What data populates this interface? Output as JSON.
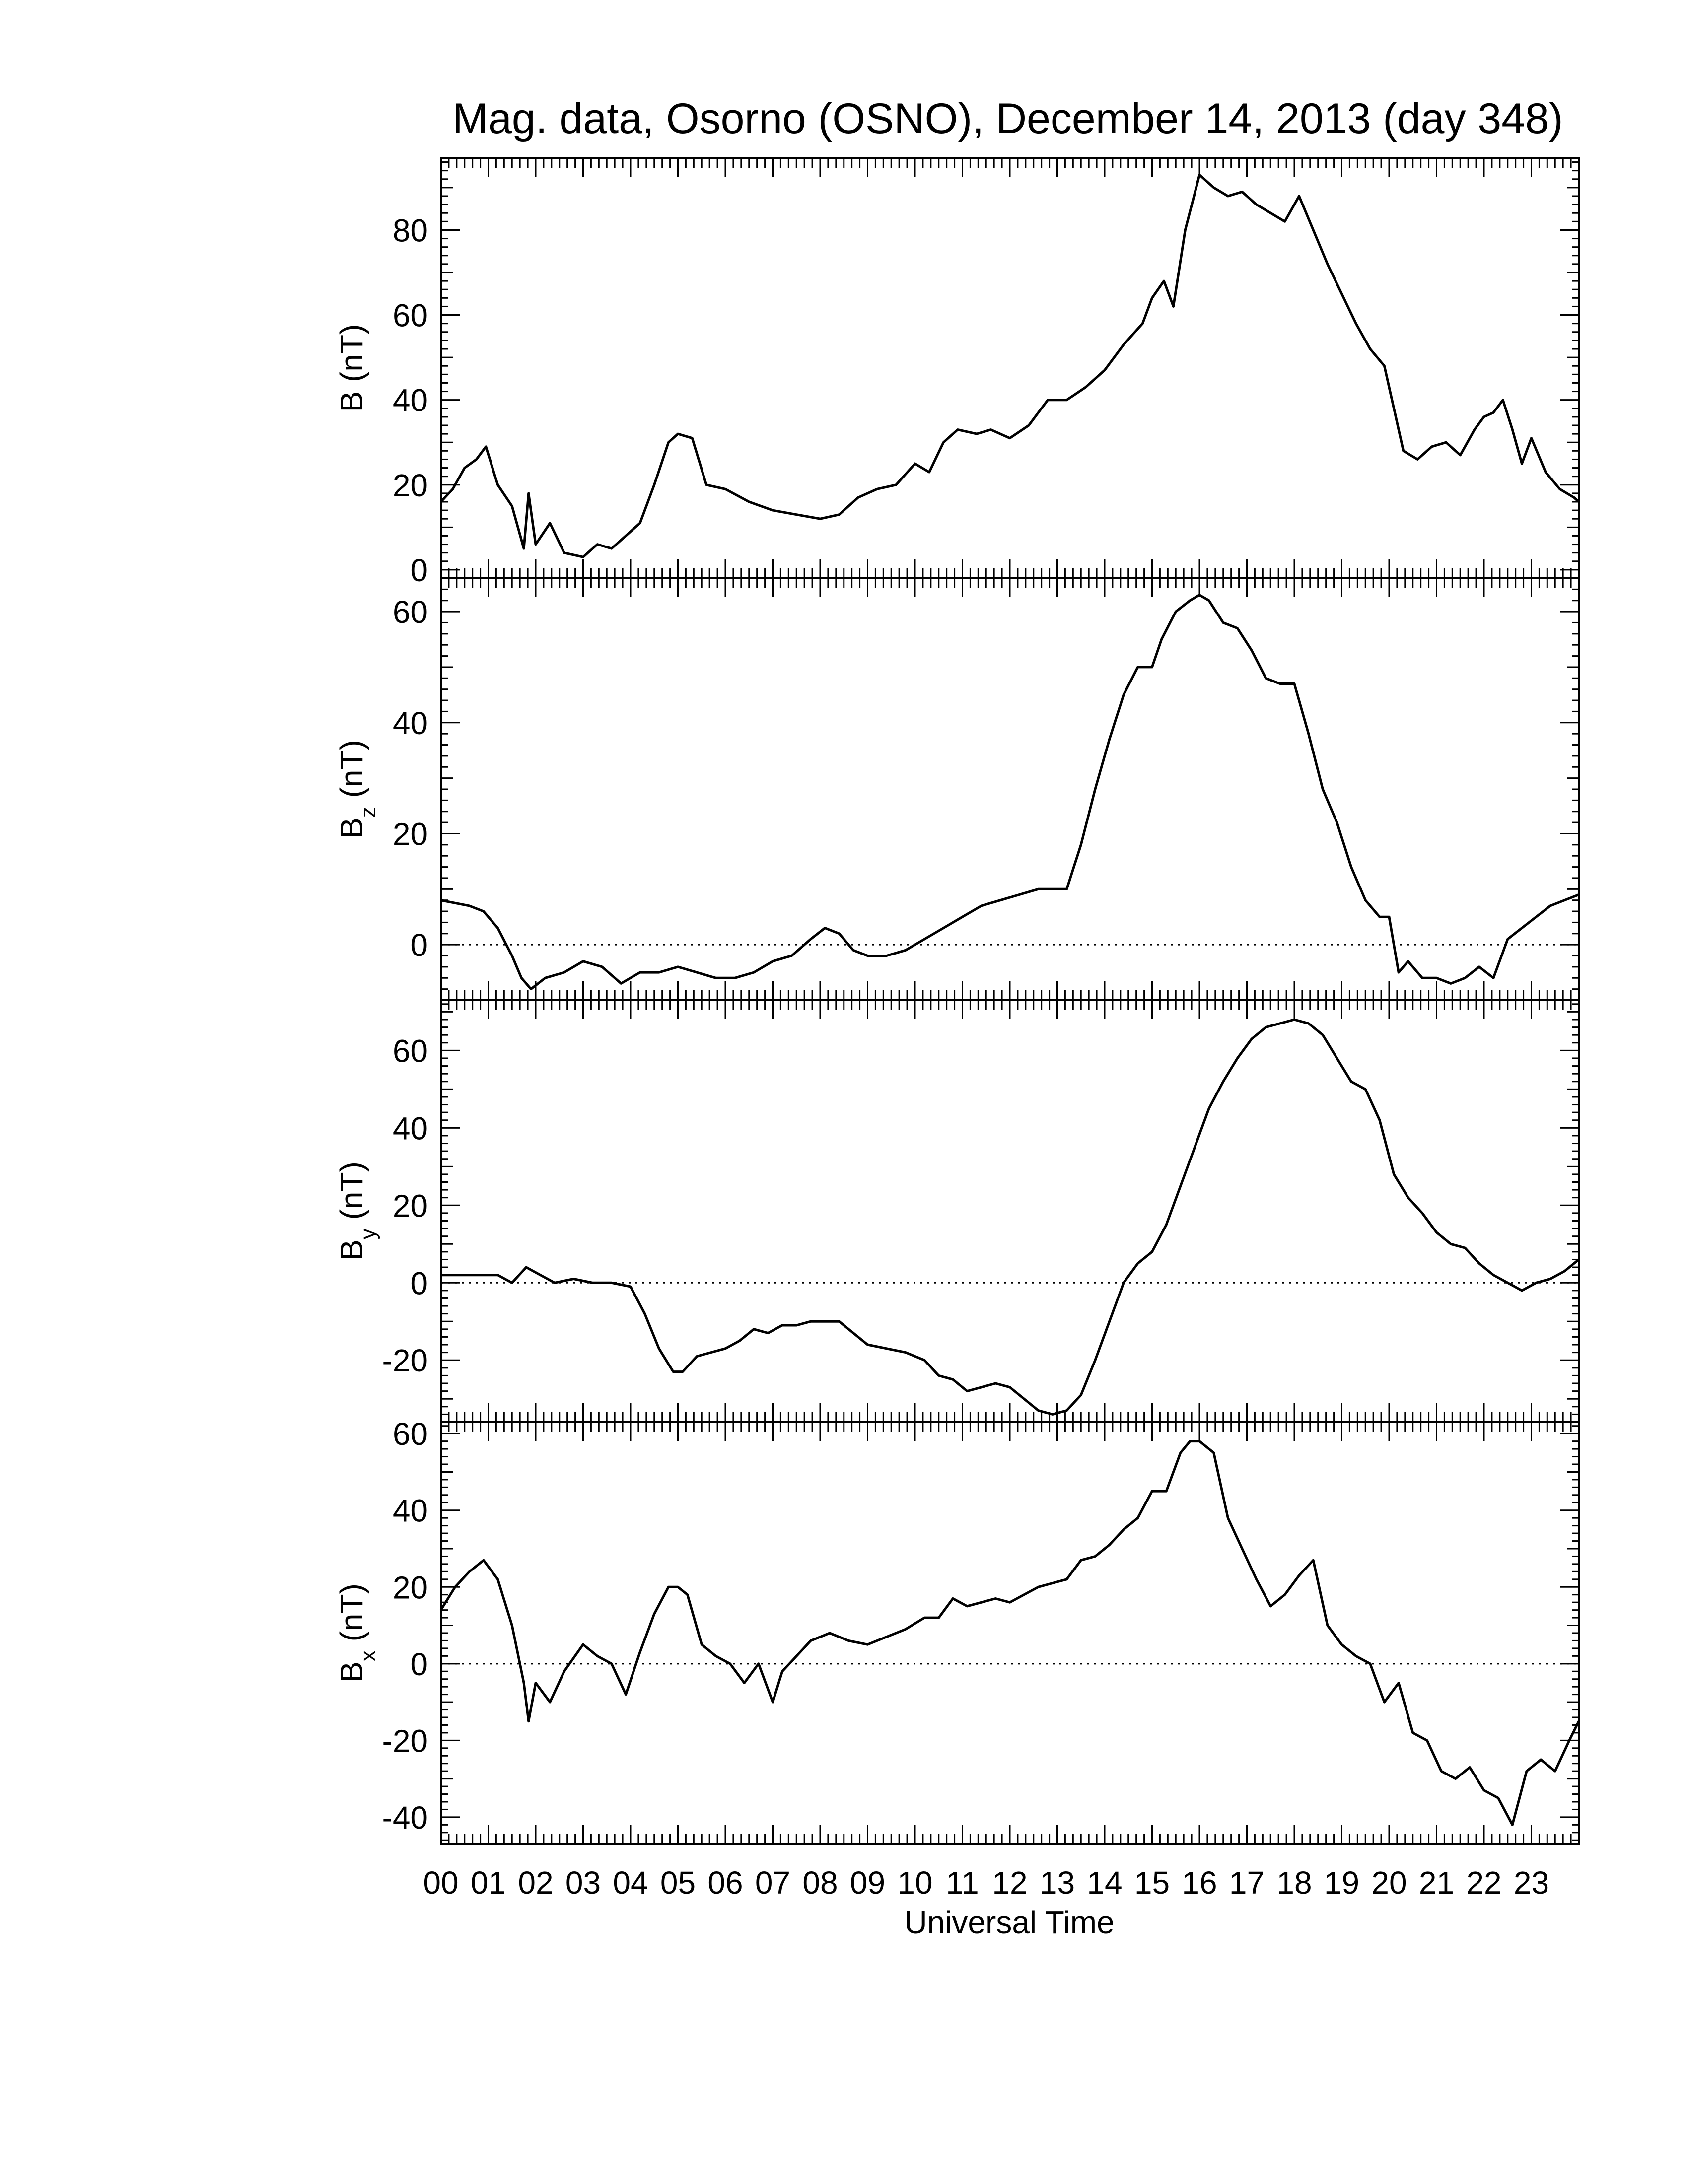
{
  "chart_data": {
    "title": "Mag. data, Osorno (OSNO), December 14, 2013 (day 348)",
    "xlabel": "Universal Time",
    "x_tick_labels": [
      "00",
      "01",
      "02",
      "03",
      "04",
      "05",
      "06",
      "07",
      "08",
      "09",
      "10",
      "11",
      "12",
      "13",
      "14",
      "15",
      "16",
      "17",
      "18",
      "19",
      "20",
      "21",
      "22",
      "23"
    ],
    "xlim": [
      0,
      24
    ],
    "line_color": "#000000",
    "panels": [
      {
        "type": "line",
        "ylabel_main": "B",
        "ylabel_sub": "",
        "ylabel_unit": "(nT)",
        "ylim": [
          -2,
          97
        ],
        "yticks": [
          0,
          20,
          40,
          60,
          80
        ],
        "zero_line": false,
        "x": [
          0,
          0.25,
          0.5,
          0.75,
          0.95,
          1.2,
          1.5,
          1.75,
          1.85,
          2.0,
          2.3,
          2.6,
          3.0,
          3.3,
          3.6,
          3.9,
          4.2,
          4.5,
          4.8,
          5.0,
          5.3,
          5.6,
          6.0,
          6.5,
          7.0,
          7.5,
          8.0,
          8.4,
          8.8,
          9.2,
          9.6,
          10.0,
          10.3,
          10.6,
          10.9,
          11.3,
          11.6,
          12.0,
          12.4,
          12.8,
          13.2,
          13.6,
          14.0,
          14.4,
          14.8,
          15.0,
          15.25,
          15.45,
          15.7,
          16.0,
          16.3,
          16.6,
          16.9,
          17.2,
          17.5,
          17.8,
          18.1,
          18.4,
          18.7,
          19.0,
          19.3,
          19.6,
          19.9,
          20.1,
          20.3,
          20.6,
          20.9,
          21.2,
          21.5,
          21.8,
          22.0,
          22.2,
          22.4,
          22.6,
          22.8,
          23.0,
          23.3,
          23.6,
          23.9,
          24.0
        ],
        "values": [
          16,
          19,
          24,
          26,
          29,
          20,
          15,
          5,
          18,
          6,
          11,
          4,
          3,
          6,
          5,
          8,
          11,
          20,
          30,
          32,
          31,
          20,
          19,
          16,
          14,
          13,
          12,
          13,
          17,
          19,
          20,
          25,
          23,
          30,
          33,
          32,
          33,
          31,
          34,
          40,
          40,
          43,
          47,
          53,
          58,
          64,
          68,
          62,
          80,
          93,
          90,
          88,
          89,
          86,
          84,
          82,
          88,
          80,
          72,
          65,
          58,
          52,
          48,
          38,
          28,
          26,
          29,
          30,
          27,
          33,
          36,
          37,
          40,
          33,
          25,
          31,
          23,
          19,
          17,
          16
        ]
      },
      {
        "type": "line",
        "ylabel_main": "B",
        "ylabel_sub": "z",
        "ylabel_unit": "(nT)",
        "ylim": [
          -10,
          66
        ],
        "yticks": [
          0,
          20,
          40,
          60
        ],
        "zero_line": true,
        "x": [
          0,
          0.3,
          0.6,
          0.9,
          1.2,
          1.5,
          1.7,
          1.9,
          2.2,
          2.6,
          3.0,
          3.4,
          3.8,
          4.2,
          4.6,
          5.0,
          5.4,
          5.8,
          6.2,
          6.6,
          7.0,
          7.4,
          7.8,
          8.1,
          8.4,
          8.7,
          9.0,
          9.4,
          9.8,
          10.2,
          10.6,
          11.0,
          11.4,
          11.8,
          12.2,
          12.6,
          13.0,
          13.2,
          13.5,
          13.8,
          14.1,
          14.4,
          14.7,
          15.0,
          15.2,
          15.5,
          15.8,
          16.0,
          16.2,
          16.5,
          16.8,
          17.1,
          17.4,
          17.7,
          18.0,
          18.3,
          18.6,
          18.9,
          19.2,
          19.5,
          19.8,
          20.0,
          20.2,
          20.4,
          20.7,
          21.0,
          21.3,
          21.6,
          21.9,
          22.2,
          22.5,
          22.8,
          23.1,
          23.4,
          23.7,
          24.0
        ],
        "values": [
          8,
          7.5,
          7,
          6,
          3,
          -2,
          -6,
          -8,
          -6,
          -5,
          -3,
          -4,
          -7,
          -5,
          -5,
          -4,
          -5,
          -6,
          -6,
          -5,
          -3,
          -2,
          1,
          3,
          2,
          -1,
          -2,
          -2,
          -1,
          1,
          3,
          5,
          7,
          8,
          9,
          10,
          10,
          10,
          18,
          28,
          37,
          45,
          50,
          50,
          55,
          60,
          62,
          63,
          62,
          58,
          57,
          53,
          48,
          47,
          47,
          38,
          28,
          22,
          14,
          8,
          5,
          5,
          -5,
          -3,
          -6,
          -6,
          -7,
          -6,
          -4,
          -6,
          1,
          3,
          5,
          7,
          8,
          9
        ]
      },
      {
        "type": "line",
        "ylabel_main": "B",
        "ylabel_sub": "y",
        "ylabel_unit": "(nT)",
        "ylim": [
          -36,
          73
        ],
        "yticks": [
          -20,
          0,
          20,
          40,
          60
        ],
        "zero_line": true,
        "x": [
          0,
          0.3,
          0.6,
          0.9,
          1.2,
          1.5,
          1.8,
          2.1,
          2.4,
          2.8,
          3.2,
          3.6,
          4.0,
          4.3,
          4.6,
          4.9,
          5.1,
          5.4,
          5.7,
          6.0,
          6.3,
          6.6,
          6.9,
          7.2,
          7.5,
          7.8,
          8.1,
          8.4,
          8.7,
          9.0,
          9.4,
          9.8,
          10.2,
          10.5,
          10.8,
          11.1,
          11.4,
          11.7,
          12.0,
          12.3,
          12.6,
          12.9,
          13.2,
          13.5,
          13.8,
          14.1,
          14.4,
          14.7,
          15.0,
          15.3,
          15.6,
          15.9,
          16.2,
          16.5,
          16.8,
          17.1,
          17.4,
          17.7,
          18.0,
          18.3,
          18.6,
          18.9,
          19.2,
          19.5,
          19.8,
          20.1,
          20.4,
          20.7,
          21.0,
          21.3,
          21.6,
          21.9,
          22.2,
          22.5,
          22.8,
          23.1,
          23.4,
          23.7,
          24.0
        ],
        "values": [
          2,
          2,
          2,
          2,
          2,
          0,
          4,
          2,
          0,
          1,
          0,
          0,
          -1,
          -8,
          -17,
          -23,
          -23,
          -19,
          -18,
          -17,
          -15,
          -12,
          -13,
          -11,
          -11,
          -10,
          -10,
          -10,
          -13,
          -16,
          -17,
          -18,
          -20,
          -24,
          -25,
          -28,
          -27,
          -26,
          -27,
          -30,
          -33,
          -34,
          -33,
          -29,
          -20,
          -10,
          0,
          5,
          8,
          15,
          25,
          35,
          45,
          52,
          58,
          63,
          66,
          67,
          68,
          67,
          64,
          58,
          52,
          50,
          42,
          28,
          22,
          18,
          13,
          10,
          9,
          5,
          2,
          0,
          -2,
          0,
          1,
          3,
          6
        ]
      },
      {
        "type": "line",
        "ylabel_main": "B",
        "ylabel_sub": "x",
        "ylabel_unit": "(nT)",
        "ylim": [
          -47,
          63
        ],
        "yticks": [
          -40,
          -20,
          0,
          20,
          40,
          60
        ],
        "zero_line": true,
        "x": [
          0,
          0.3,
          0.6,
          0.9,
          1.2,
          1.5,
          1.75,
          1.85,
          2.0,
          2.3,
          2.6,
          3.0,
          3.3,
          3.6,
          3.9,
          4.2,
          4.5,
          4.8,
          5.0,
          5.2,
          5.5,
          5.8,
          6.1,
          6.4,
          6.7,
          7.0,
          7.2,
          7.5,
          7.8,
          8.2,
          8.6,
          9.0,
          9.4,
          9.8,
          10.2,
          10.5,
          10.8,
          11.1,
          11.4,
          11.7,
          12.0,
          12.3,
          12.6,
          12.9,
          13.2,
          13.5,
          13.8,
          14.1,
          14.4,
          14.7,
          15.0,
          15.3,
          15.6,
          15.8,
          16.0,
          16.3,
          16.6,
          16.9,
          17.2,
          17.5,
          17.8,
          18.1,
          18.4,
          18.7,
          19.0,
          19.3,
          19.6,
          19.9,
          20.2,
          20.5,
          20.8,
          21.1,
          21.4,
          21.7,
          22.0,
          22.3,
          22.6,
          22.9,
          23.2,
          23.5,
          23.8,
          24.0
        ],
        "values": [
          14,
          20,
          24,
          27,
          22,
          10,
          -5,
          -15,
          -5,
          -10,
          -2,
          5,
          2,
          0,
          -8,
          3,
          13,
          20,
          20,
          18,
          5,
          2,
          0,
          -5,
          0,
          -10,
          -2,
          2,
          6,
          8,
          6,
          5,
          7,
          9,
          12,
          12,
          17,
          15,
          16,
          17,
          16,
          18,
          20,
          21,
          22,
          27,
          28,
          31,
          35,
          38,
          45,
          45,
          55,
          58,
          58,
          55,
          38,
          30,
          22,
          15,
          18,
          23,
          27,
          10,
          5,
          2,
          0,
          -10,
          -5,
          -18,
          -20,
          -28,
          -30,
          -27,
          -33,
          -35,
          -42,
          -28,
          -25,
          -28,
          -20,
          -15
        ]
      }
    ]
  }
}
